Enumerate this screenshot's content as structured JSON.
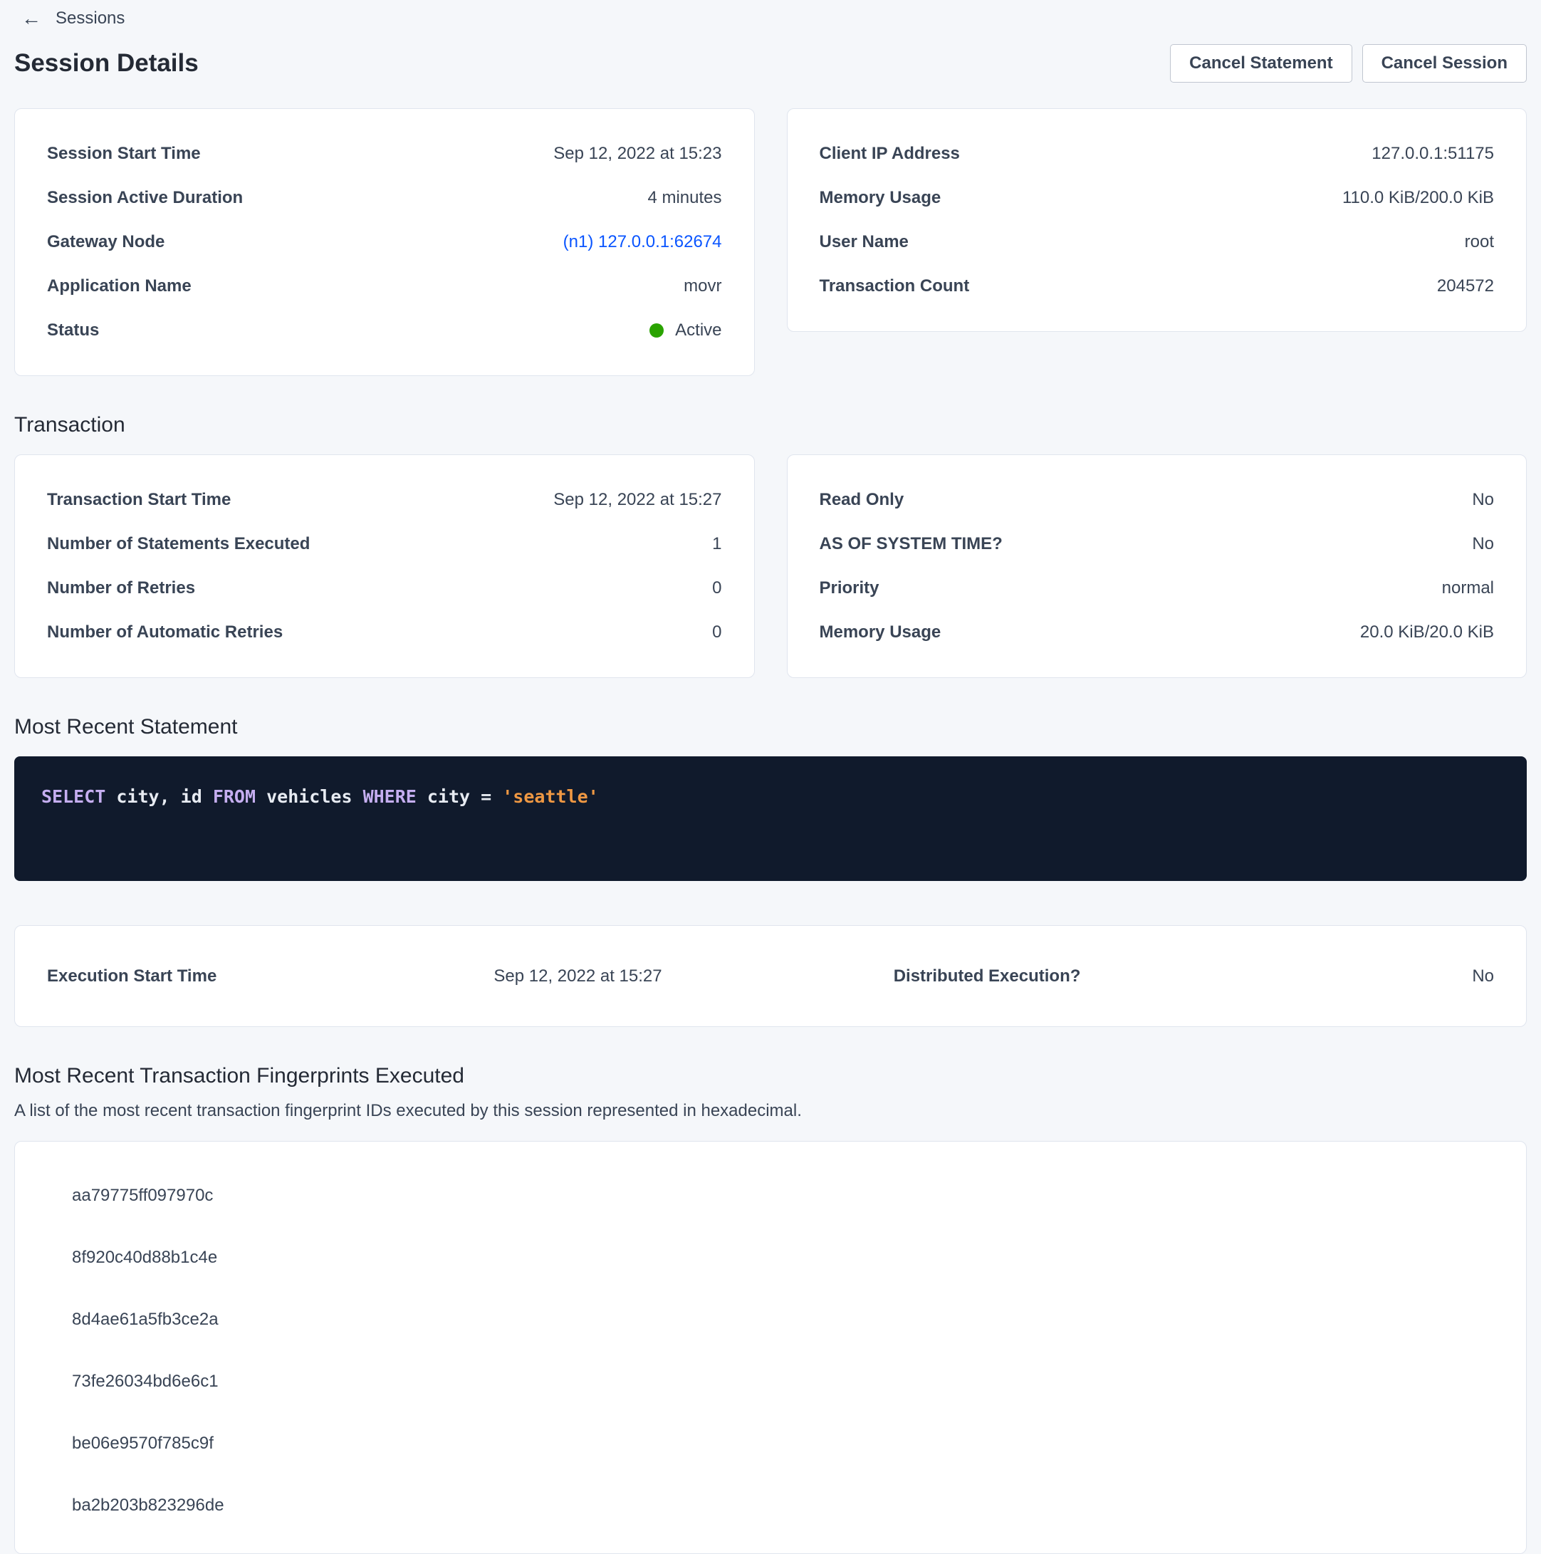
{
  "colors": {
    "page_background": "#f5f7fa",
    "link_blue": "#0a55ff",
    "status_active_green": "#2aa300",
    "code_background": "#101a2c",
    "code_keyword": "#c5aef0",
    "code_string": "#ef9843"
  },
  "header": {
    "back_label": "Sessions",
    "title": "Session Details",
    "cancel_statement_label": "Cancel Statement",
    "cancel_session_label": "Cancel Session"
  },
  "session": {
    "left": [
      {
        "label": "Session Start Time",
        "value": "Sep 12, 2022 at 15:23"
      },
      {
        "label": "Session Active Duration",
        "value": "4 minutes"
      },
      {
        "label": "Gateway Node",
        "value": "(n1) 127.0.0.1:62674"
      },
      {
        "label": "Application Name",
        "value": "movr"
      },
      {
        "label": "Status",
        "value": "Active"
      }
    ],
    "right": [
      {
        "label": "Client IP Address",
        "value": "127.0.0.1:51175"
      },
      {
        "label": "Memory Usage",
        "value": "110.0 KiB/200.0 KiB"
      },
      {
        "label": "User Name",
        "value": "root"
      },
      {
        "label": "Transaction Count",
        "value": "204572"
      }
    ]
  },
  "transaction": {
    "heading": "Transaction",
    "left": [
      {
        "label": "Transaction Start Time",
        "value": "Sep 12, 2022 at 15:27"
      },
      {
        "label": "Number of Statements Executed",
        "value": "1"
      },
      {
        "label": "Number of Retries",
        "value": "0"
      },
      {
        "label": "Number of Automatic Retries",
        "value": "0"
      }
    ],
    "right": [
      {
        "label": "Read Only",
        "value": "No"
      },
      {
        "label": "AS OF SYSTEM TIME?",
        "value": "No"
      },
      {
        "label": "Priority",
        "value": "normal"
      },
      {
        "label": "Memory Usage",
        "value": "20.0 KiB/20.0 KiB"
      }
    ]
  },
  "statement": {
    "heading": "Most Recent Statement",
    "sql_full": "SELECT city, id FROM vehicles WHERE city = 'seattle'",
    "tokens": [
      {
        "text": "SELECT",
        "type": "keyword"
      },
      {
        "text": " city, id ",
        "type": "plain"
      },
      {
        "text": "FROM",
        "type": "keyword"
      },
      {
        "text": " vehicles ",
        "type": "plain"
      },
      {
        "text": "WHERE",
        "type": "keyword"
      },
      {
        "text": " city = ",
        "type": "plain"
      },
      {
        "text": "'seattle'",
        "type": "string"
      }
    ]
  },
  "execution": {
    "left": {
      "label": "Execution Start Time",
      "value": "Sep 12, 2022 at 15:27"
    },
    "right": {
      "label": "Distributed Execution?",
      "value": "No"
    }
  },
  "fingerprints": {
    "heading": "Most Recent Transaction Fingerprints Executed",
    "description": "A list of the most recent transaction fingerprint IDs executed by this session represented in hexadecimal.",
    "ids": [
      "aa79775ff097970c",
      "8f920c40d88b1c4e",
      "8d4ae61a5fb3ce2a",
      "73fe26034bd6e6c1",
      "be06e9570f785c9f",
      "ba2b203b823296de"
    ]
  }
}
